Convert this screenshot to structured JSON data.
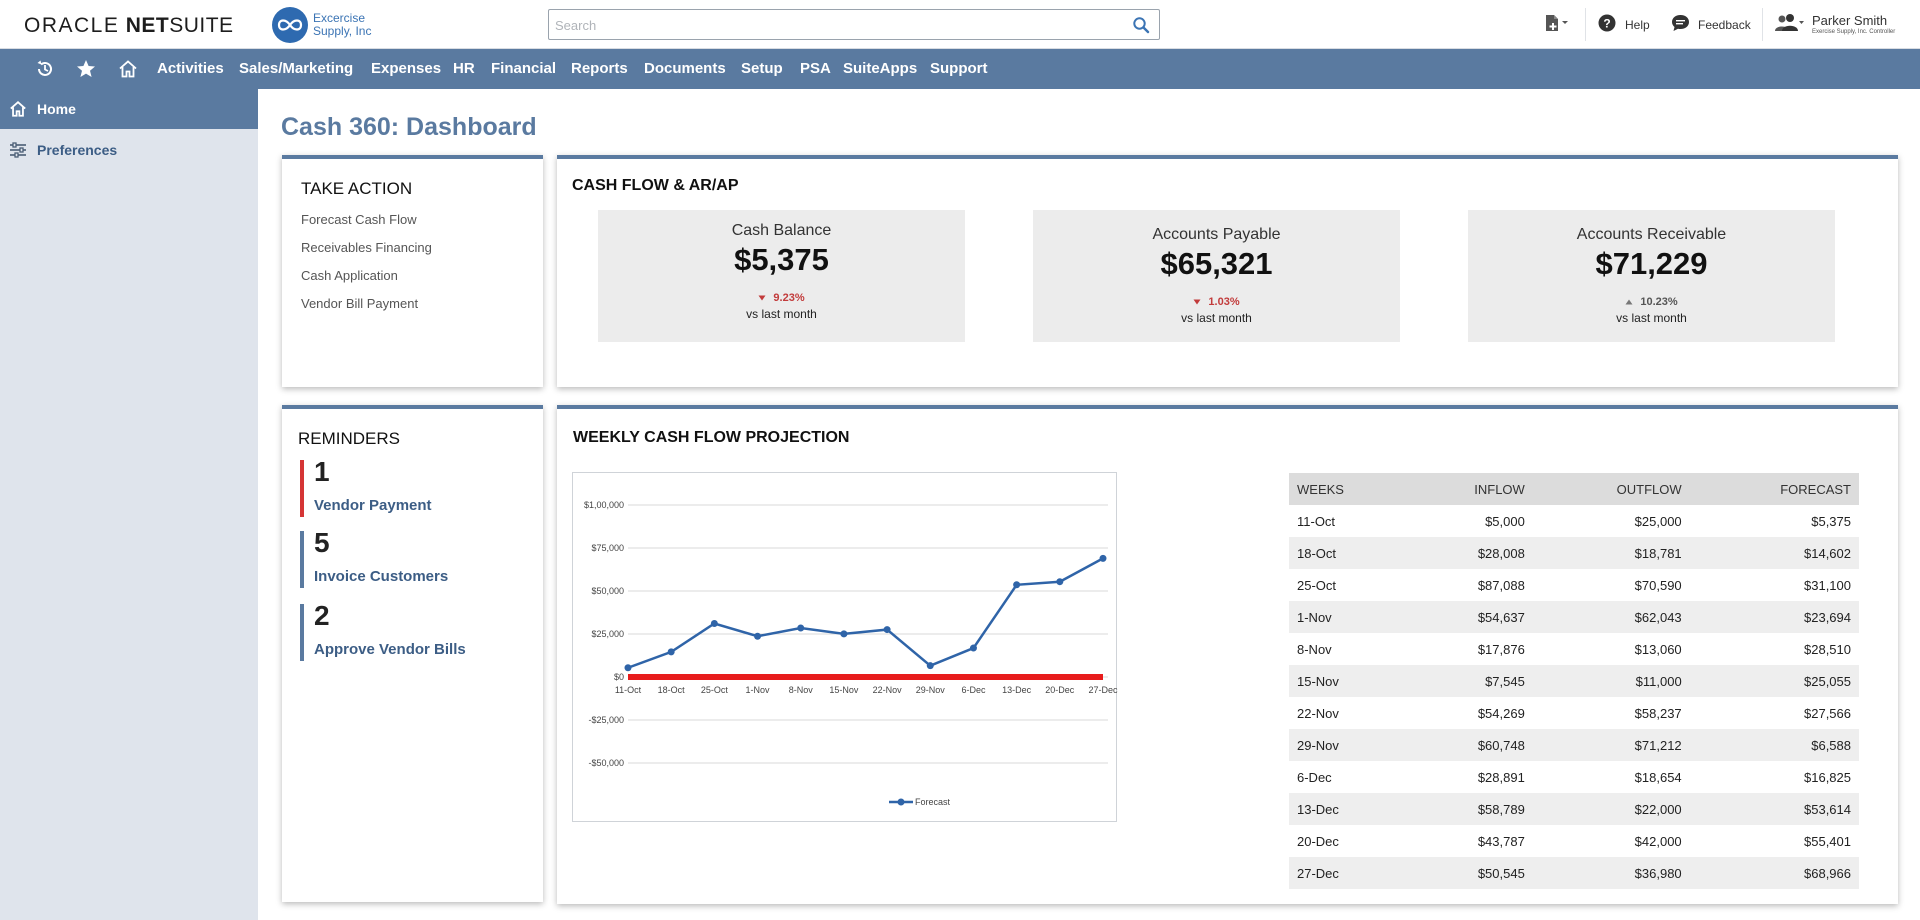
{
  "header": {
    "logo_oracle": "ORACLE",
    "logo_net": "NET",
    "logo_suite": "SUITE",
    "company_line1": "Excercise",
    "company_line2": "Supply, Inc",
    "search_placeholder": "Search",
    "help_label": "Help",
    "feedback_label": "Feedback",
    "user_name": "Parker Smith",
    "user_role": "Exercise Supply, Inc. Controller"
  },
  "nav": {
    "items": [
      "Activities",
      "Sales/Marketing",
      "Expenses",
      "HR",
      "Financial",
      "Reports",
      "Documents",
      "Setup",
      "PSA",
      "SuiteApps",
      "Support"
    ]
  },
  "sidebar": {
    "home_label": "Home",
    "preferences_label": "Preferences"
  },
  "page": {
    "title": "Cash 360: Dashboard"
  },
  "take_action": {
    "title": "TAKE ACTION",
    "links": [
      "Forecast Cash Flow",
      "Receivables Financing",
      "Cash Application",
      "Vendor Bill Payment"
    ]
  },
  "cash_flow": {
    "title": "CASH FLOW & AR/AP",
    "metrics": [
      {
        "label": "Cash Balance",
        "value": "$5,375",
        "change": "9.23%",
        "direction": "down",
        "vs": "vs last month"
      },
      {
        "label": "Accounts Payable",
        "value": "$65,321",
        "change": "1.03%",
        "direction": "down",
        "vs": "vs last month"
      },
      {
        "label": "Accounts Receivable",
        "value": "$71,229",
        "change": "10.23%",
        "direction": "up",
        "vs": "vs last month"
      }
    ]
  },
  "reminders": {
    "title": "REMINDERS",
    "items": [
      {
        "count": "1",
        "label": "Vendor Payment",
        "color": "#d53535"
      },
      {
        "count": "5",
        "label": "Invoice Customers",
        "color": "#5a7aa0"
      },
      {
        "count": "2",
        "label": "Approve Vendor Bills",
        "color": "#5a7aa0"
      }
    ]
  },
  "weekly": {
    "title": "WEEKLY CASH FLOW PROJECTION",
    "table_headers": [
      "WEEKS",
      "INFLOW",
      "OUTFLOW",
      "FORECAST"
    ],
    "rows": [
      [
        "11-Oct",
        "$5,000",
        "$25,000",
        "$5,375"
      ],
      [
        "18-Oct",
        "$28,008",
        "$18,781",
        "$14,602"
      ],
      [
        "25-Oct",
        "$87,088",
        "$70,590",
        "$31,100"
      ],
      [
        "1-Nov",
        "$54,637",
        "$62,043",
        "$23,694"
      ],
      [
        "8-Nov",
        "$17,876",
        "$13,060",
        "$28,510"
      ],
      [
        "15-Nov",
        "$7,545",
        "$11,000",
        "$25,055"
      ],
      [
        "22-Nov",
        "$54,269",
        "$58,237",
        "$27,566"
      ],
      [
        "29-Nov",
        "$60,748",
        "$71,212",
        "$6,588"
      ],
      [
        "6-Dec",
        "$28,891",
        "$18,654",
        "$16,825"
      ],
      [
        "13-Dec",
        "$58,789",
        "$22,000",
        "$53,614"
      ],
      [
        "20-Dec",
        "$43,787",
        "$42,000",
        "$55,401"
      ],
      [
        "27-Dec",
        "$50,545",
        "$36,980",
        "$68,966"
      ]
    ]
  },
  "chart_data": {
    "type": "line",
    "title": "",
    "xlabel": "",
    "ylabel": "",
    "categories": [
      "11-Oct",
      "18-Oct",
      "25-Oct",
      "1-Nov",
      "8-Nov",
      "15-Nov",
      "22-Nov",
      "29-Nov",
      "6-Dec",
      "13-Dec",
      "20-Dec",
      "27-Dec"
    ],
    "series": [
      {
        "name": "Forecast",
        "values": [
          5375,
          14602,
          31100,
          23694,
          28510,
          25055,
          27566,
          6588,
          16825,
          53614,
          55401,
          68966
        ],
        "color": "#2f64a8"
      }
    ],
    "baseline": {
      "value": 0,
      "color": "#e81c1c"
    },
    "ylim": [
      -50000,
      100000
    ],
    "y_ticks": [
      100000,
      75000,
      50000,
      25000,
      0,
      -25000,
      -50000
    ],
    "y_tick_labels": [
      "$1,00,000",
      "$75,000",
      "$50,000",
      "$25,000",
      "$0",
      "-$25,000",
      "-$50,000"
    ],
    "grid": true,
    "legend": "bottom"
  }
}
